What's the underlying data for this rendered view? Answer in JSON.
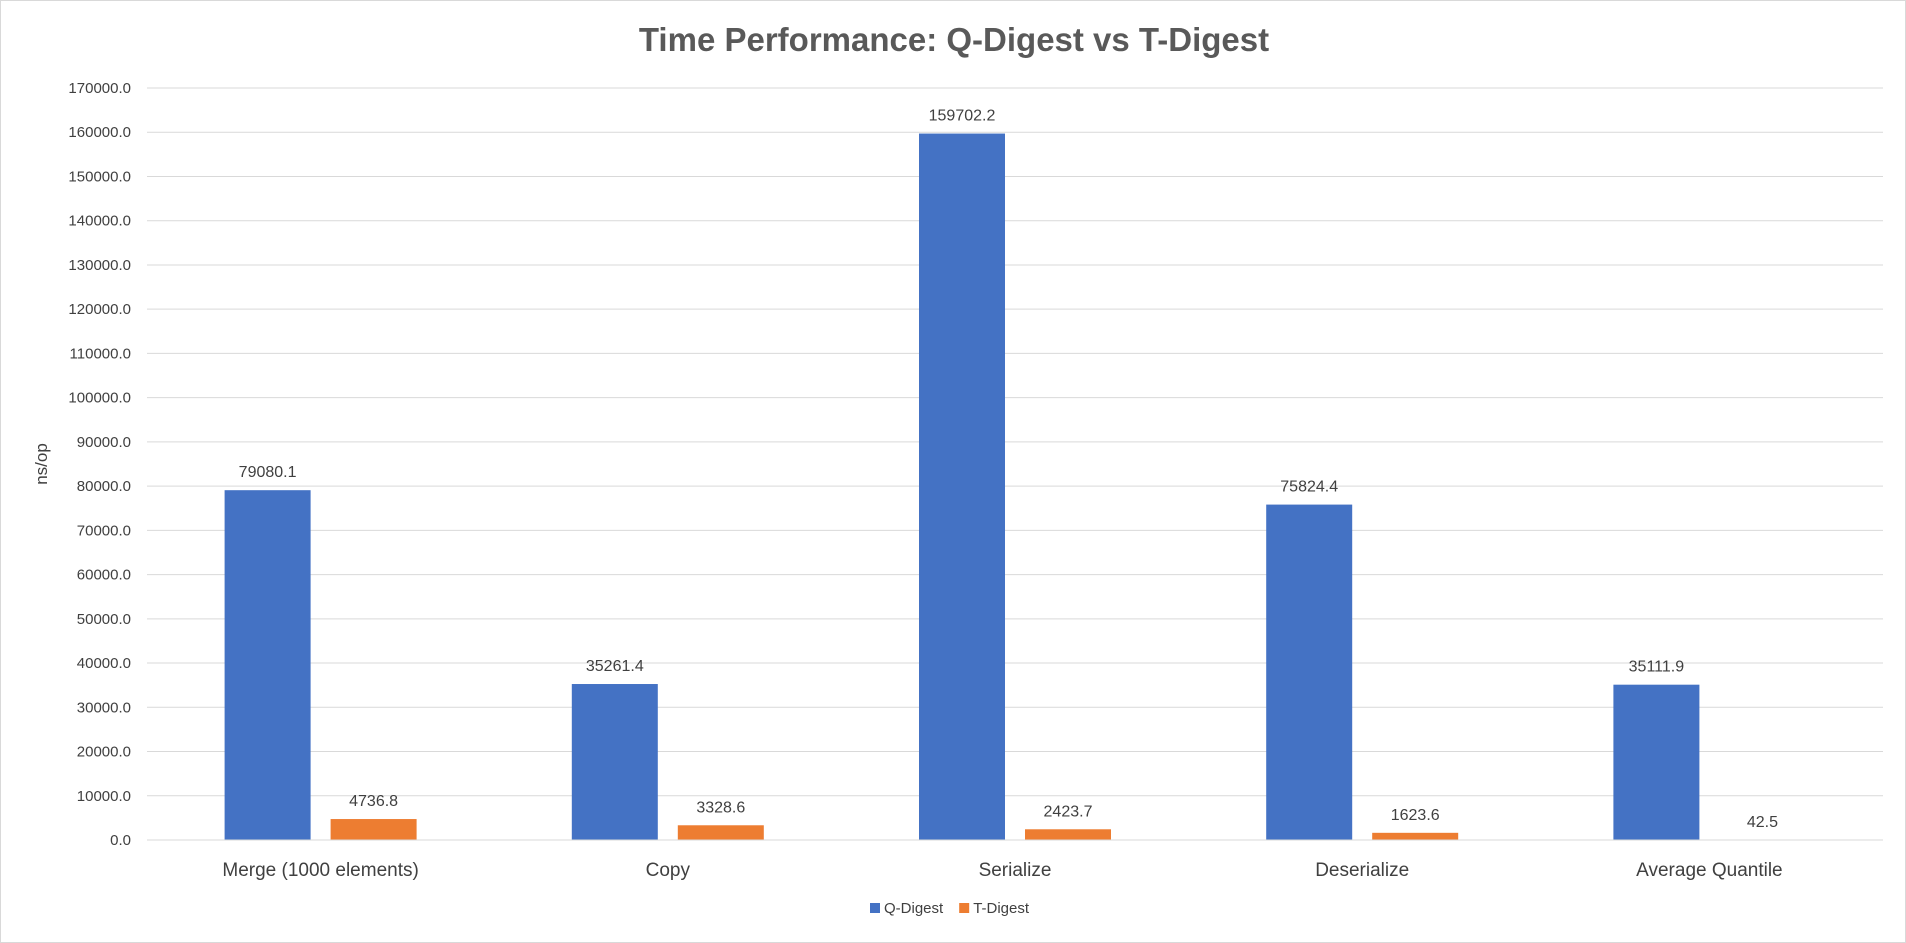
{
  "chart_data": {
    "type": "bar",
    "title": "Time Performance: Q-Digest vs T-Digest",
    "xlabel": "",
    "ylabel": "ns/op",
    "ylim": [
      0,
      170000
    ],
    "ytick_step": 10000,
    "ytick_labels": [
      "0.0",
      "10000.0",
      "20000.0",
      "30000.0",
      "40000.0",
      "50000.0",
      "60000.0",
      "70000.0",
      "80000.0",
      "90000.0",
      "100000.0",
      "110000.0",
      "120000.0",
      "130000.0",
      "140000.0",
      "150000.0",
      "160000.0",
      "170000.0"
    ],
    "grid": true,
    "legend_position": "bottom",
    "categories": [
      "Merge (1000 elements)",
      "Copy",
      "Serialize",
      "Deserialize",
      "Average Quantile"
    ],
    "series": [
      {
        "name": "Q-Digest",
        "color": "#4472C4",
        "values": [
          79080.1,
          35261.4,
          159702.2,
          75824.4,
          35111.9
        ],
        "labels": [
          "79080.1",
          "35261.4",
          "159702.2",
          "75824.4",
          "35111.9"
        ]
      },
      {
        "name": "T-Digest",
        "color": "#ED7D31",
        "values": [
          4736.8,
          3328.6,
          2423.7,
          1623.6,
          42.5
        ],
        "labels": [
          "4736.8",
          "3328.6",
          "2423.7",
          "1623.6",
          "42.5"
        ]
      }
    ]
  }
}
